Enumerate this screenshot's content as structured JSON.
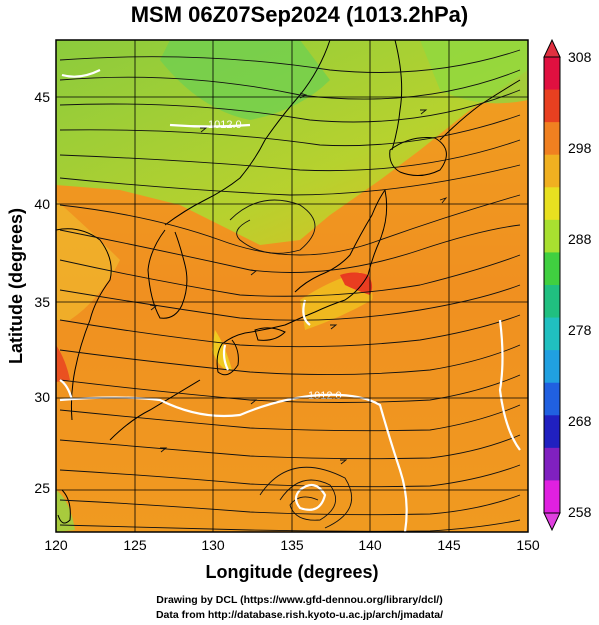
{
  "title": "MSM 06Z07Sep2024 (1013.2hPa)",
  "axes": {
    "xlabel": "Longitude (degrees)",
    "ylabel": "Latitude  (degrees)",
    "xticks": [
      "120",
      "125",
      "130",
      "135",
      "140",
      "145",
      "150"
    ],
    "yticks": [
      "25",
      "30",
      "35",
      "40",
      "45"
    ]
  },
  "colorbar": {
    "labels": [
      "308",
      "298",
      "288",
      "278",
      "268",
      "258"
    ],
    "colors": [
      "#e01040",
      "#e84020",
      "#f08020",
      "#f0b020",
      "#e8e020",
      "#a8e030",
      "#40d040",
      "#20c080",
      "#20c0c0",
      "#20a0e0",
      "#2060e0",
      "#2020c0",
      "#8020c0",
      "#e020e0"
    ]
  },
  "contours": {
    "label_1": "1012.0",
    "label_2": "1012.0"
  },
  "credits": {
    "line1": "Drawing by DCL (https://www.gfd-dennou.org/library/dcl/)",
    "line2": "Data from http://database.rish.kyoto-u.ac.jp/arch/jmadata/"
  }
}
